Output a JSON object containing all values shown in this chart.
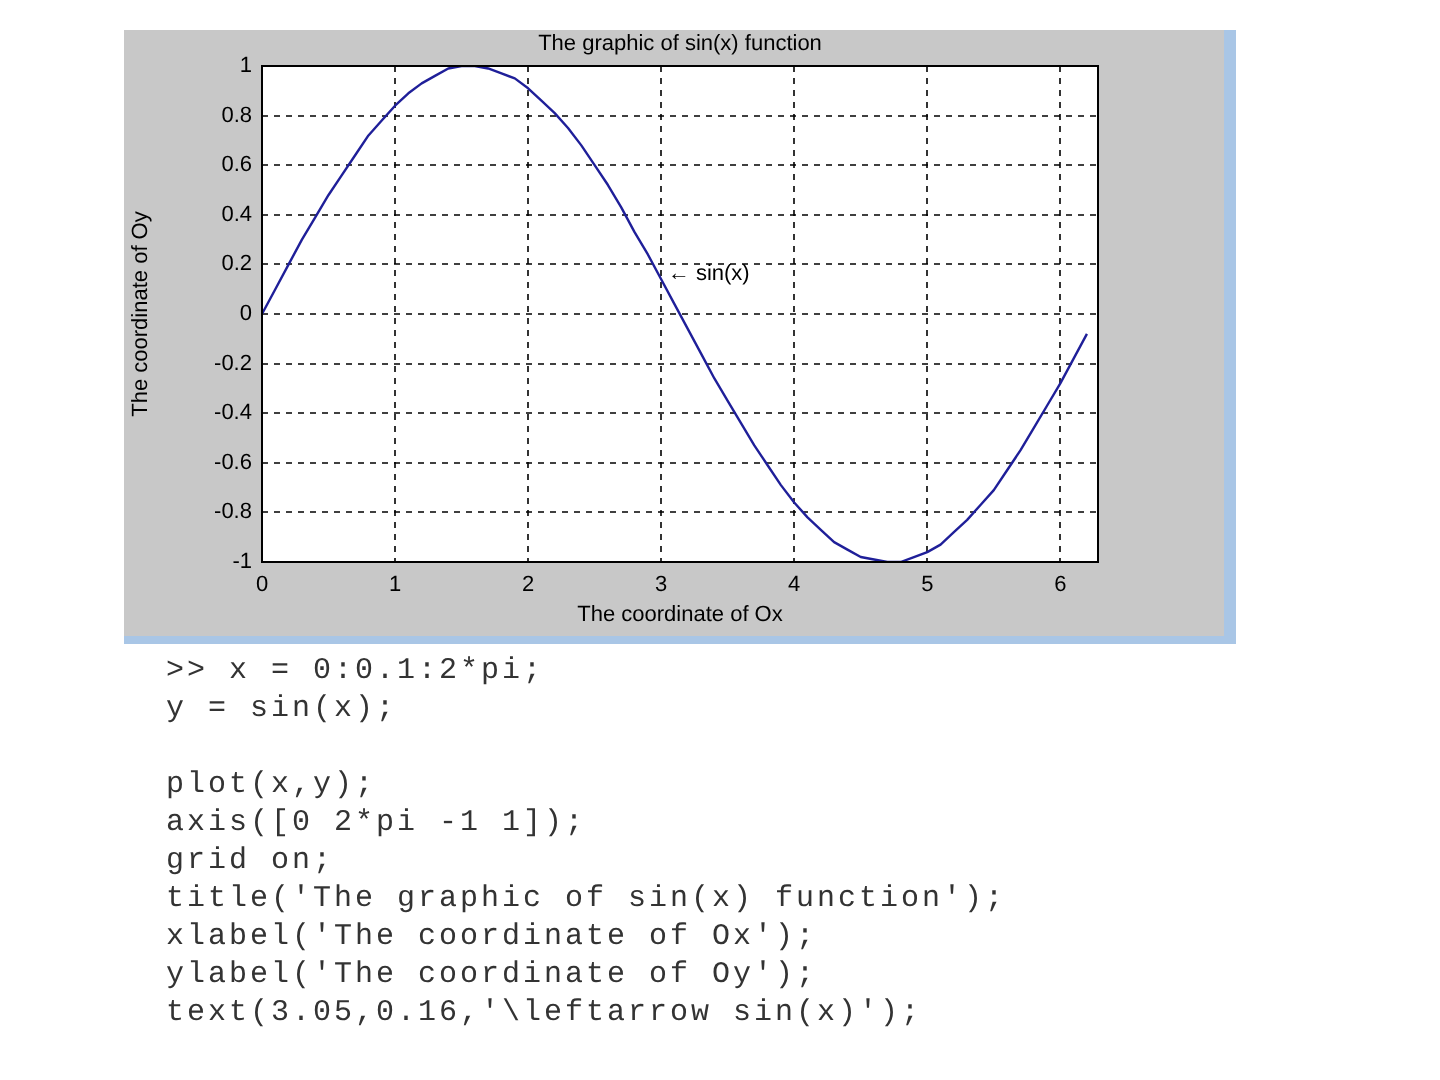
{
  "chart_data": {
    "type": "line",
    "title": "The graphic of sin(x) function",
    "xlabel": "The coordinate of Ox",
    "ylabel": "The coordinate of Oy",
    "x": [
      0,
      0.1,
      0.2,
      0.3,
      0.4,
      0.5,
      0.6,
      0.7,
      0.8,
      0.9,
      1.0,
      1.1,
      1.2,
      1.3,
      1.4,
      1.5,
      1.6,
      1.7,
      1.8,
      1.9,
      2.0,
      2.1,
      2.2,
      2.3,
      2.4,
      2.5,
      2.6,
      2.7,
      2.8,
      2.9,
      3.0,
      3.1,
      3.2,
      3.3,
      3.4,
      3.5,
      3.6,
      3.7,
      3.8,
      3.9,
      4.0,
      4.1,
      4.2,
      4.3,
      4.4,
      4.5,
      4.6,
      4.7,
      4.8,
      4.9,
      5.0,
      5.1,
      5.2,
      5.3,
      5.4,
      5.5,
      5.6,
      5.7,
      5.8,
      5.9,
      6.0,
      6.1,
      6.2
    ],
    "series": [
      {
        "color": "#1f1f99",
        "values": [
          0,
          0.1,
          0.2,
          0.3,
          0.39,
          0.48,
          0.56,
          0.64,
          0.72,
          0.78,
          0.84,
          0.89,
          0.93,
          0.96,
          0.99,
          1.0,
          1.0,
          0.99,
          0.97,
          0.95,
          0.91,
          0.86,
          0.81,
          0.75,
          0.68,
          0.6,
          0.52,
          0.43,
          0.33,
          0.24,
          0.14,
          0.04,
          -0.06,
          -0.16,
          -0.26,
          -0.35,
          -0.44,
          -0.53,
          -0.61,
          -0.69,
          -0.76,
          -0.82,
          -0.87,
          -0.92,
          -0.95,
          -0.98,
          -0.99,
          -1.0,
          -1.0,
          -0.98,
          -0.96,
          -0.93,
          -0.88,
          -0.83,
          -0.77,
          -0.71,
          -0.63,
          -0.55,
          -0.46,
          -0.37,
          -0.28,
          -0.18,
          -0.08
        ]
      }
    ],
    "xlim": [
      0,
      6.2832
    ],
    "ylim": [
      -1,
      1
    ],
    "xticks": [
      0,
      1,
      2,
      3,
      4,
      5,
      6
    ],
    "yticks": [
      -1,
      -0.8,
      -0.6,
      -0.4,
      -0.2,
      0,
      0.2,
      0.4,
      0.6,
      0.8,
      1
    ],
    "grid": true,
    "marker": "none",
    "line_style": "solid",
    "annotations": [
      {
        "text": "← sin(x)",
        "x": 3.05,
        "y": 0.16
      },
      ">> x = 0:0.1:2*pi;\ny = sin(x);\n\nplot(x,y);\naxis([0 2*pi -1 1]);\ngrid on;\ntitle('The graphic of sin(x) function');\nxlabel('The coordinate of Ox');\nylabel('The coordinate of Oy');\ntext(3.05,0.16,'\\leftarrow sin(x)');"
    ]
  }
}
